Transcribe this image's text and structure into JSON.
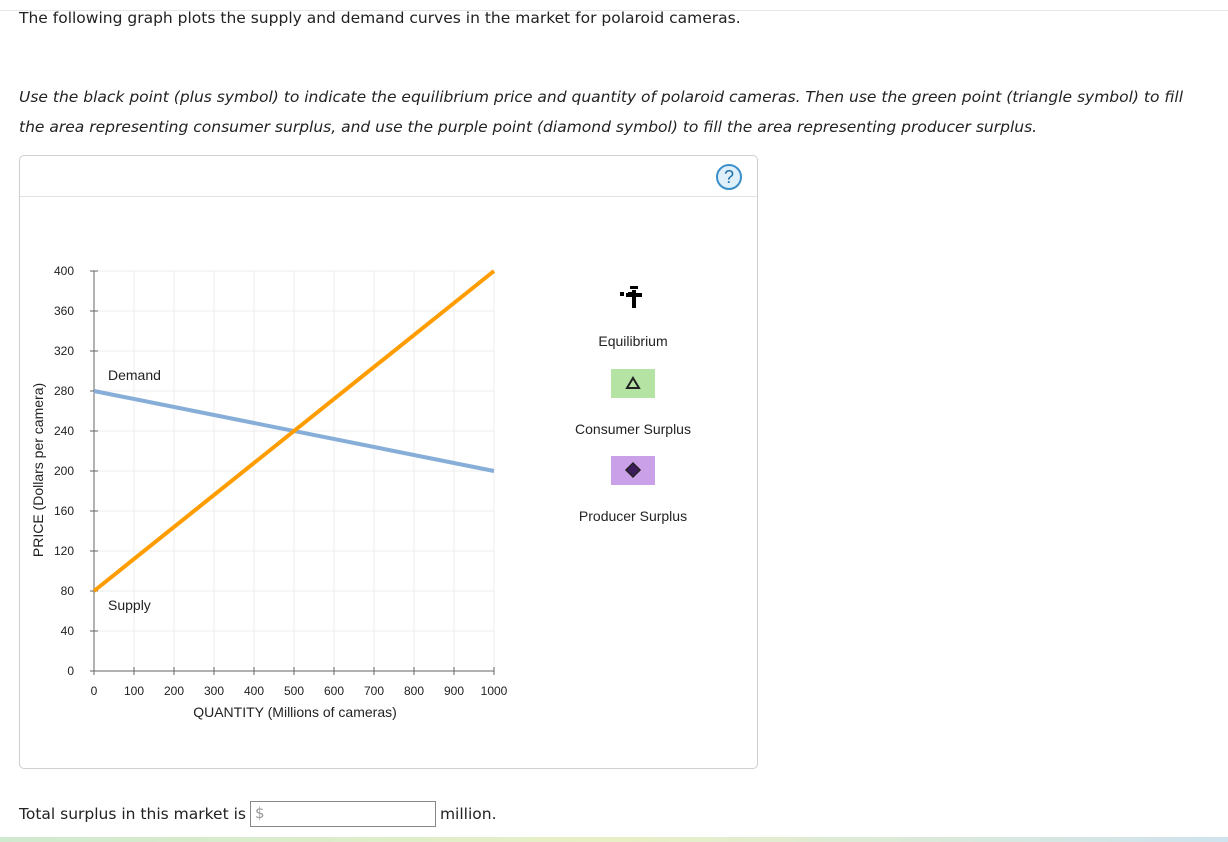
{
  "intro_text": "The following graph plots the supply and demand curves in the market for polaroid cameras.",
  "instructions_text": "Use the black point (plus symbol) to indicate the equilibrium price and quantity of polaroid cameras. Then use the green point (triangle symbol) to fill the area representing consumer surplus, and use the purple point (diamond symbol) to fill the area representing producer surplus.",
  "help_button_label": "?",
  "chart_data": {
    "type": "line",
    "xlabel": "QUANTITY (Millions of cameras)",
    "ylabel": "PRICE (Dollars per camera)",
    "xlim": [
      0,
      1000
    ],
    "ylim": [
      0,
      400
    ],
    "x_ticks": [
      0,
      100,
      200,
      300,
      400,
      500,
      600,
      700,
      800,
      900,
      1000
    ],
    "y_ticks": [
      0,
      40,
      80,
      120,
      160,
      200,
      240,
      280,
      320,
      360,
      400
    ],
    "grid": true,
    "series": [
      {
        "name": "Demand",
        "color": "#87aed8",
        "points": [
          [
            0,
            280
          ],
          [
            1000,
            200
          ]
        ]
      },
      {
        "name": "Supply",
        "color": "#ff9d00",
        "points": [
          [
            0,
            80
          ],
          [
            1000,
            400
          ]
        ]
      }
    ]
  },
  "palette": {
    "equilibrium": {
      "label": "Equilibrium",
      "icon": "plus-icon",
      "color": "#000000"
    },
    "consumer_surplus": {
      "label": "Consumer Surplus",
      "icon": "triangle-icon",
      "color": "#b5e3a4"
    },
    "producer_surplus": {
      "label": "Producer Surplus",
      "icon": "diamond-icon",
      "color": "#caa0e8"
    }
  },
  "answer": {
    "prefix": "Total surplus in this market is",
    "currency_symbol": "$",
    "value": "",
    "suffix": "million."
  }
}
